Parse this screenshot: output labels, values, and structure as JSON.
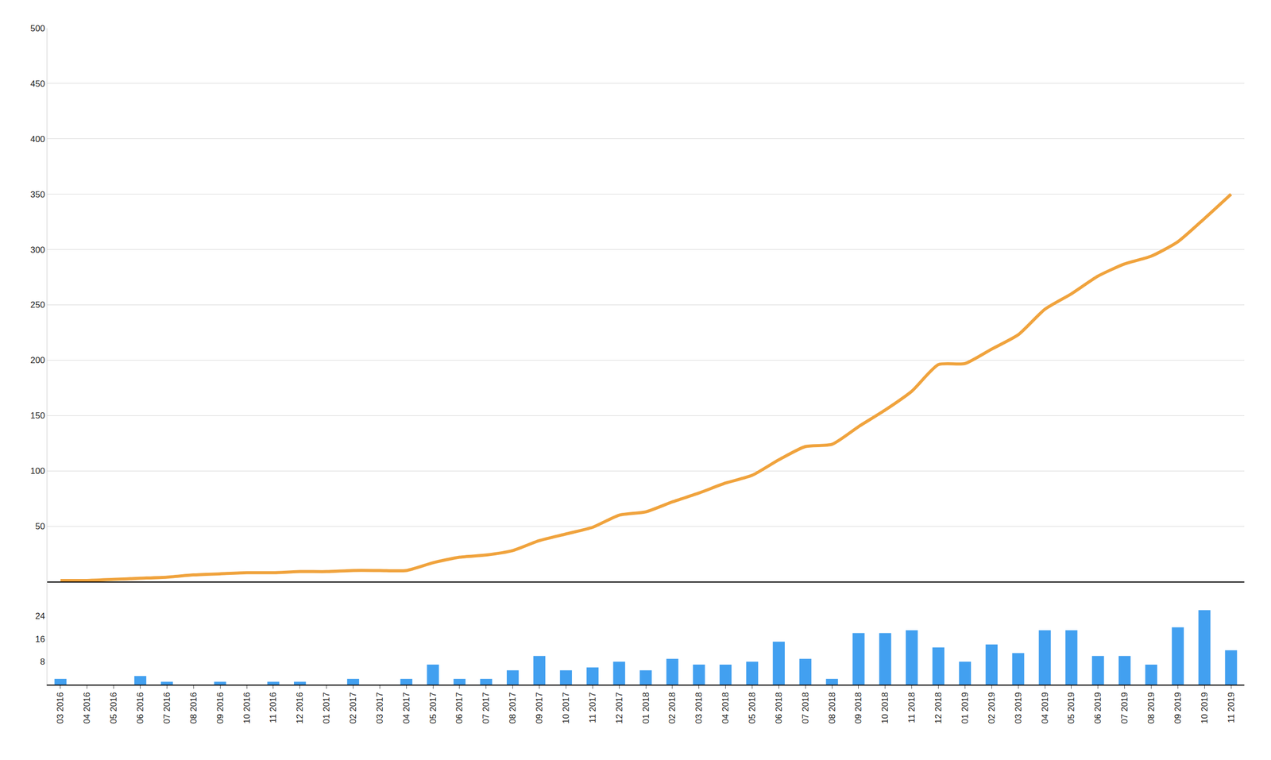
{
  "chart_data": [
    {
      "type": "line",
      "categories": [
        "03 2016",
        "04 2016",
        "05 2016",
        "06 2016",
        "07 2016",
        "08 2016",
        "09 2016",
        "10 2016",
        "11 2016",
        "12 2016",
        "01 2017",
        "02 2017",
        "03 2017",
        "04 2017",
        "05 2017",
        "06 2017",
        "07 2017",
        "08 2017",
        "09 2017",
        "10 2017",
        "11 2017",
        "12 2017",
        "01 2018",
        "02 2018",
        "03 2018",
        "04 2018",
        "05 2018",
        "06 2018",
        "07 2018",
        "08 2018",
        "09 2018",
        "10 2018",
        "11 2018",
        "12 2018",
        "01 2019",
        "02 2019",
        "03 2019",
        "04 2019",
        "05 2019",
        "06 2019",
        "07 2019",
        "08 2019",
        "09 2019",
        "10 2019",
        "11 2019"
      ],
      "values": [
        1,
        1,
        2,
        3,
        4,
        6,
        7,
        8,
        8,
        9,
        9,
        10,
        10,
        10,
        17,
        22,
        24,
        28,
        37,
        43,
        49,
        60,
        63,
        72,
        80,
        89,
        96,
        110,
        122,
        124,
        140,
        155,
        172,
        196,
        197,
        210,
        223,
        246,
        260,
        276,
        287,
        294,
        307,
        328,
        350
      ],
      "color": "#f0a33d",
      "ylim": [
        0,
        500
      ],
      "yticks": [
        50,
        100,
        150,
        200,
        250,
        300,
        350,
        400,
        450,
        500
      ],
      "grid": true,
      "tick_labels": "y"
    },
    {
      "type": "bar",
      "categories": [
        "03 2016",
        "04 2016",
        "05 2016",
        "06 2016",
        "07 2016",
        "08 2016",
        "09 2016",
        "10 2016",
        "11 2016",
        "12 2016",
        "01 2017",
        "02 2017",
        "03 2017",
        "04 2017",
        "05 2017",
        "06 2017",
        "07 2017",
        "08 2017",
        "09 2017",
        "10 2017",
        "11 2017",
        "12 2017",
        "01 2018",
        "02 2018",
        "03 2018",
        "04 2018",
        "05 2018",
        "06 2018",
        "07 2018",
        "08 2018",
        "09 2018",
        "10 2018",
        "11 2018",
        "12 2018",
        "01 2019",
        "02 2019",
        "03 2019",
        "04 2019",
        "05 2019",
        "06 2019",
        "07 2019",
        "08 2019",
        "09 2019",
        "10 2019",
        "11 2019"
      ],
      "values": [
        2,
        0,
        0,
        3,
        1,
        0,
        1,
        0,
        1,
        1,
        0,
        2,
        0,
        2,
        7,
        2,
        2,
        5,
        10,
        5,
        6,
        8,
        5,
        9,
        7,
        7,
        8,
        15,
        9,
        2,
        18,
        18,
        19,
        13,
        8,
        14,
        11,
        19,
        19,
        10,
        10,
        7,
        20,
        26,
        12
      ],
      "color": "#42a0f0",
      "ylim": [
        0,
        36
      ],
      "yticks": [
        8,
        16,
        24
      ],
      "grid": false
    }
  ]
}
